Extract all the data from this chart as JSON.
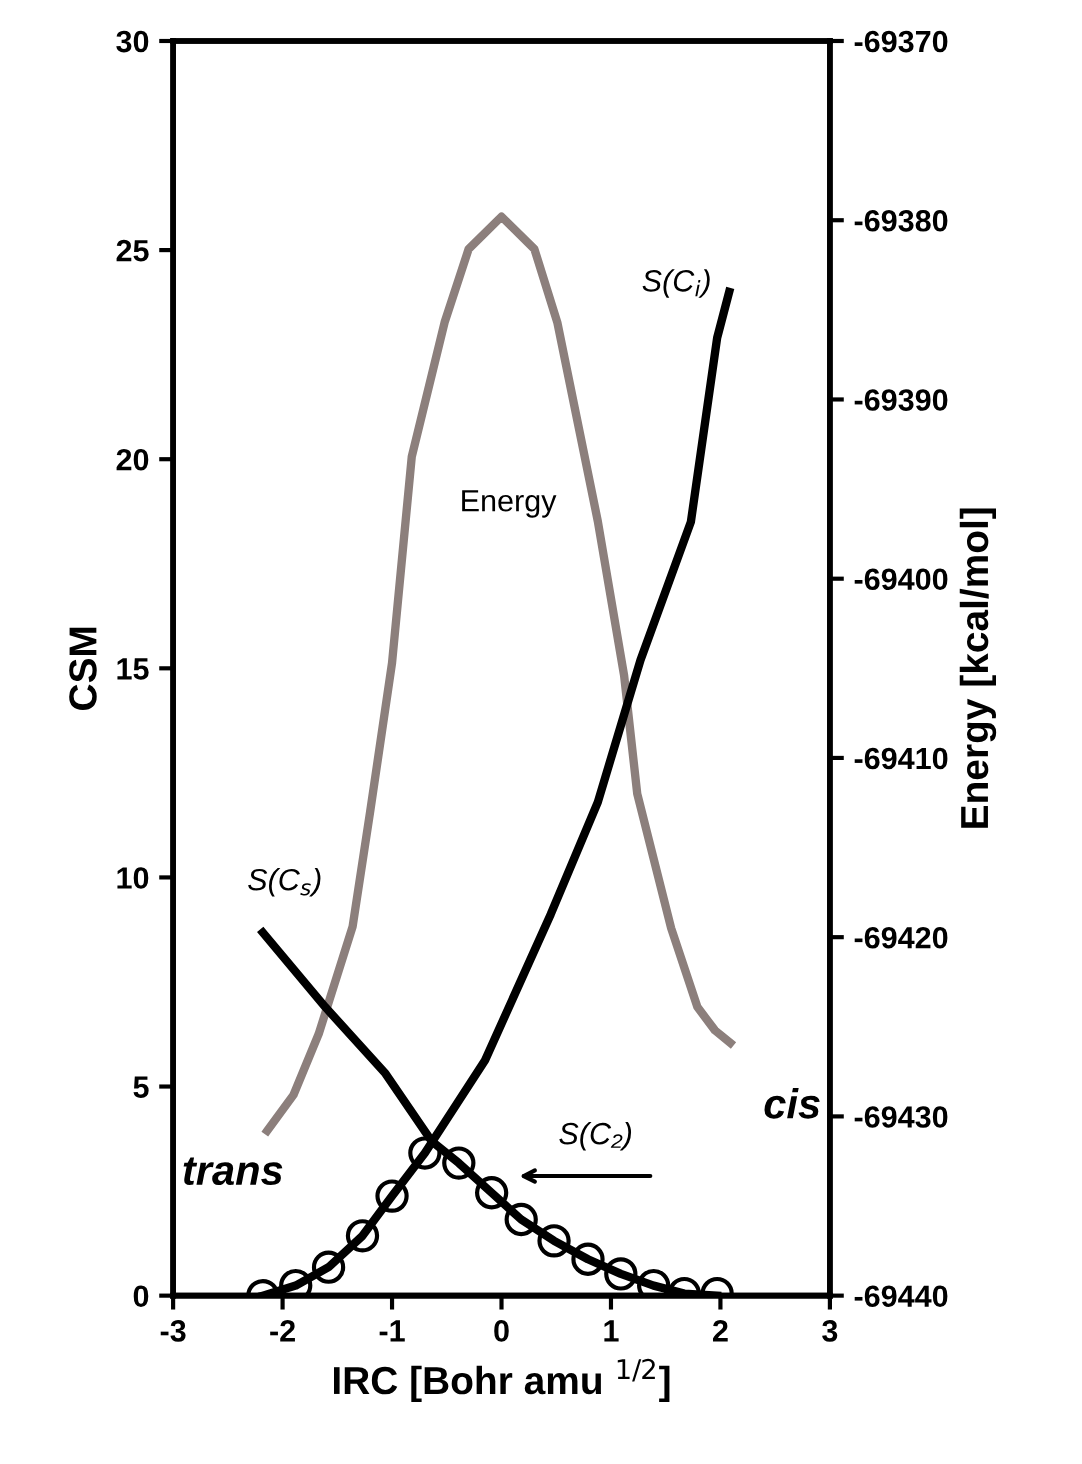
{
  "chart_data": {
    "type": "line",
    "xlabel": "IRC [Bohr amu $^{1/2}$]",
    "ylabel": "CSM",
    "y2label": "Energy [kcal/mol]",
    "xlim": [
      -3,
      3
    ],
    "xticks": [
      -3,
      -2,
      -1,
      0,
      1,
      2,
      3
    ],
    "ylim": [
      0,
      30
    ],
    "yticks": [
      0,
      5,
      10,
      15,
      20,
      25,
      30
    ],
    "y2lim": [
      -69440,
      -69370
    ],
    "y2ticks": [
      -69440,
      -69430,
      -69420,
      -69410,
      -69400,
      -69390,
      -69380,
      -69370
    ],
    "grid": false,
    "legend": false,
    "line_style": "solid",
    "series": [
      {
        "name": "Energy",
        "axis": "y2",
        "color": "#8c7f7c",
        "x": [
          -2.14,
          -1.9,
          -1.67,
          -1.36,
          -1.2,
          -1.0,
          -0.82,
          -0.52,
          -0.3,
          0,
          0.3,
          0.51,
          0.88,
          1.12,
          1.24,
          1.55,
          1.79,
          1.95,
          2.09
        ],
        "values": [
          -69430.8,
          -69428.8,
          -69425.4,
          -69419.4,
          -69413,
          -69404.7,
          -69393.2,
          -69385.7,
          -69381.6,
          -69379.8,
          -69381.6,
          -69385.7,
          -69396.8,
          -69405.4,
          -69412,
          -69419.5,
          -69423.9,
          -69425.2,
          -69425.9
        ]
      },
      {
        "name": "S(C$_{i}$)",
        "color": "#000000",
        "x": [
          -2.18,
          -1.88,
          -1.58,
          -1.27,
          -1.0,
          -0.7,
          -0.15,
          0.45,
          0.88,
          1.27,
          1.73,
          1.97,
          2.08
        ],
        "values": [
          0,
          0.24,
          0.68,
          1.43,
          2.38,
          3.41,
          5.63,
          9.12,
          11.8,
          15.2,
          18.5,
          22.9,
          24.0
        ]
      },
      {
        "name": "S(C$_{s}$)",
        "color": "#000000",
        "x": [
          -2.18,
          -1.61,
          -1.06,
          -0.64,
          -0.39,
          -0.09,
          0.18,
          0.48,
          0.79,
          1.09,
          1.39,
          1.67,
          1.97
        ],
        "values": [
          8.68,
          6.9,
          5.31,
          3.7,
          3.17,
          2.46,
          1.82,
          1.31,
          0.87,
          0.52,
          0.24,
          0.05,
          0.0
        ]
      },
      {
        "name": "S(C₂)",
        "type": "scatter",
        "marker": "circle",
        "color": "#000000",
        "x": [
          -2.18,
          -1.88,
          -1.58,
          -1.27,
          -1.0,
          -0.7,
          -0.39,
          -0.09,
          0.18,
          0.48,
          0.79,
          1.09,
          1.39,
          1.67,
          1.97
        ],
        "values": [
          0,
          0.24,
          0.68,
          1.43,
          2.38,
          3.41,
          3.17,
          2.46,
          1.82,
          1.31,
          0.87,
          0.52,
          0.24,
          0.05,
          0.05
        ]
      }
    ],
    "annotations": [
      "trans",
      "cis"
    ]
  }
}
